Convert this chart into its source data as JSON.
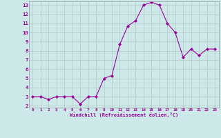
{
  "x": [
    0,
    1,
    2,
    3,
    4,
    5,
    6,
    7,
    8,
    9,
    10,
    11,
    12,
    13,
    14,
    15,
    16,
    17,
    18,
    19,
    20,
    21,
    22,
    23
  ],
  "y": [
    3,
    3,
    2.7,
    3,
    3,
    3,
    2.2,
    3,
    3,
    5,
    5.3,
    8.7,
    10.7,
    11.3,
    13,
    13.3,
    13,
    11,
    10,
    7.3,
    8.2,
    7.5,
    8.2,
    8.2
  ],
  "line_color": "#990099",
  "marker_color": "#990099",
  "bg_color": "#cce8e8",
  "grid_color": "#bbcccc",
  "xlabel": "Windchill (Refroidissement éolien,°C)",
  "xlabel_color": "#990099",
  "tick_color": "#990099",
  "spine_color": "#999999",
  "ylim": [
    1.8,
    13.4
  ],
  "xlim": [
    -0.5,
    23.5
  ],
  "yticks": [
    2,
    3,
    4,
    5,
    6,
    7,
    8,
    9,
    10,
    11,
    12,
    13
  ],
  "xticks": [
    0,
    1,
    2,
    3,
    4,
    5,
    6,
    7,
    8,
    9,
    10,
    11,
    12,
    13,
    14,
    15,
    16,
    17,
    18,
    19,
    20,
    21,
    22,
    23
  ],
  "xlabel_fontsize": 5.0,
  "tick_fontsize_x": 4.2,
  "tick_fontsize_y": 5.2
}
